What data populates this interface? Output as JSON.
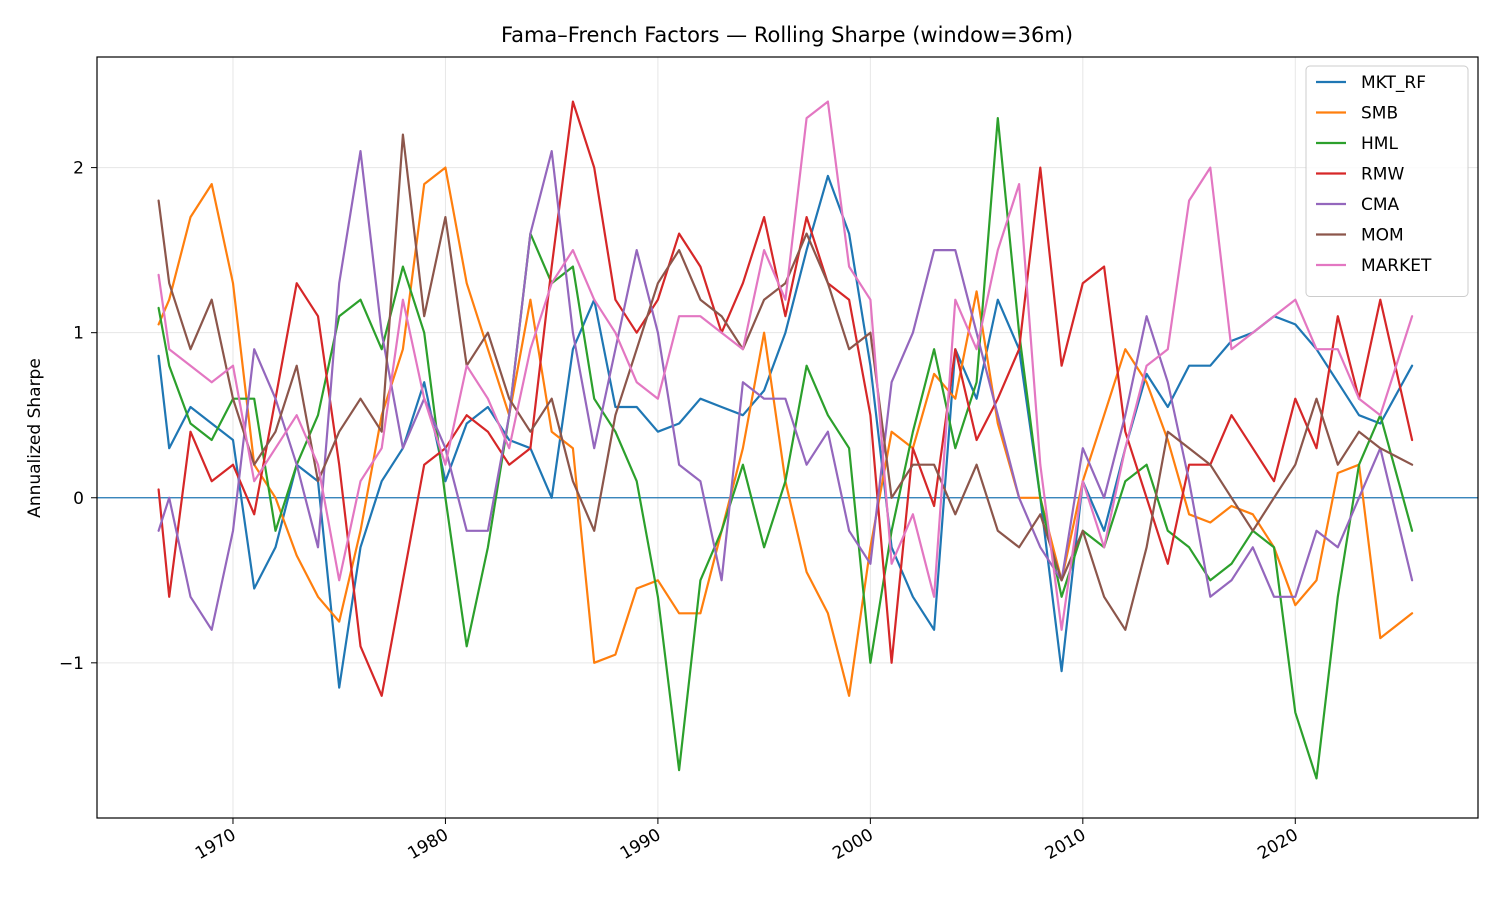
{
  "chart_data": {
    "type": "line",
    "title": "Fama–French Factors — Rolling Sharpe (window=36m)",
    "xlabel": "",
    "ylabel": "Annualized Sharpe",
    "xlim": [
      1963.6,
      2028.6
    ],
    "ylim": [
      -1.94,
      2.67
    ],
    "x_ticks": [
      1970,
      1980,
      1990,
      2000,
      2010,
      2020
    ],
    "x_tick_labels": [
      "1970",
      "1980",
      "1990",
      "2000",
      "2010",
      "2020"
    ],
    "y_ticks": [
      -1,
      0,
      1,
      2
    ],
    "y_tick_labels": [
      "−1",
      "0",
      "1",
      "2"
    ],
    "grid": true,
    "zero_line": true,
    "legend_position": "top-right",
    "x": [
      1966.5,
      1967,
      1968,
      1969,
      1970,
      1971,
      1972,
      1973,
      1974,
      1975,
      1976,
      1977,
      1978,
      1979,
      1980,
      1981,
      1982,
      1983,
      1984,
      1985,
      1986,
      1987,
      1988,
      1989,
      1990,
      1991,
      1992,
      1993,
      1994,
      1995,
      1996,
      1997,
      1998,
      1999,
      2000,
      2001,
      2002,
      2003,
      2004,
      2005,
      2006,
      2007,
      2008,
      2009,
      2010,
      2011,
      2012,
      2013,
      2014,
      2015,
      2016,
      2017,
      2018,
      2019,
      2020,
      2021,
      2022,
      2023,
      2024,
      2025.5
    ],
    "series": [
      {
        "name": "MKT_RF",
        "color": "#1f77b4",
        "values": [
          0.86,
          0.3,
          0.55,
          0.45,
          0.35,
          -0.55,
          -0.3,
          0.2,
          0.1,
          -1.15,
          -0.3,
          0.1,
          0.3,
          0.7,
          0.1,
          0.45,
          0.55,
          0.35,
          0.3,
          0.0,
          0.9,
          1.2,
          0.55,
          0.55,
          0.4,
          0.45,
          0.6,
          0.55,
          0.5,
          0.65,
          1.0,
          1.5,
          1.95,
          1.6,
          0.8,
          -0.3,
          -0.6,
          -0.8,
          0.9,
          0.6,
          1.2,
          0.9,
          0.0,
          -1.05,
          0.1,
          -0.2,
          0.3,
          0.75,
          0.55,
          0.8,
          0.8,
          0.95,
          1.0,
          1.1,
          1.05,
          0.9,
          0.7,
          0.5,
          0.45,
          0.8
        ]
      },
      {
        "name": "SMB",
        "color": "#ff7f0e",
        "values": [
          1.05,
          1.2,
          1.7,
          1.9,
          1.3,
          0.2,
          0.0,
          -0.35,
          -0.6,
          -0.75,
          -0.2,
          0.5,
          0.9,
          1.9,
          2.0,
          1.3,
          0.9,
          0.5,
          1.2,
          0.4,
          0.3,
          -1.0,
          -0.95,
          -0.55,
          -0.5,
          -0.7,
          -0.7,
          -0.2,
          0.3,
          1.0,
          0.1,
          -0.45,
          -0.7,
          -1.2,
          -0.3,
          0.4,
          0.3,
          0.75,
          0.6,
          1.25,
          0.45,
          0.0,
          0.0,
          -0.5,
          0.1,
          0.5,
          0.9,
          0.7,
          0.35,
          -0.1,
          -0.15,
          -0.05,
          -0.1,
          -0.3,
          -0.65,
          -0.5,
          0.15,
          0.2,
          -0.85,
          -0.7
        ]
      },
      {
        "name": "HML",
        "color": "#2ca02c",
        "values": [
          1.15,
          0.8,
          0.45,
          0.35,
          0.6,
          0.6,
          -0.2,
          0.2,
          0.5,
          1.1,
          1.2,
          0.9,
          1.4,
          1.0,
          0.0,
          -0.9,
          -0.3,
          0.5,
          1.6,
          1.3,
          1.4,
          0.6,
          0.4,
          0.1,
          -0.6,
          -1.65,
          -0.5,
          -0.2,
          0.2,
          -0.3,
          0.1,
          0.8,
          0.5,
          0.3,
          -1.0,
          -0.2,
          0.4,
          0.9,
          0.3,
          0.7,
          2.3,
          1.0,
          0.0,
          -0.6,
          -0.2,
          -0.3,
          0.1,
          0.2,
          -0.2,
          -0.3,
          -0.5,
          -0.4,
          -0.2,
          -0.3,
          -1.3,
          -1.7,
          -0.6,
          0.2,
          0.5,
          -0.2
        ]
      },
      {
        "name": "RMW",
        "color": "#d62728",
        "values": [
          0.05,
          -0.6,
          0.4,
          0.1,
          0.2,
          -0.1,
          0.6,
          1.3,
          1.1,
          0.2,
          -0.9,
          -1.2,
          -0.5,
          0.2,
          0.3,
          0.5,
          0.4,
          0.2,
          0.3,
          1.4,
          2.4,
          2.0,
          1.2,
          1.0,
          1.2,
          1.6,
          1.4,
          1.0,
          1.3,
          1.7,
          1.1,
          1.7,
          1.3,
          1.2,
          0.5,
          -1.0,
          0.3,
          -0.05,
          0.9,
          0.35,
          0.6,
          0.9,
          2.0,
          0.8,
          1.3,
          1.4,
          0.4,
          0.0,
          -0.4,
          0.2,
          0.2,
          0.5,
          0.3,
          0.1,
          0.6,
          0.3,
          1.1,
          0.6,
          1.2,
          0.35
        ]
      },
      {
        "name": "CMA",
        "color": "#9467bd",
        "values": [
          -0.2,
          0.0,
          -0.6,
          -0.8,
          -0.2,
          0.9,
          0.6,
          0.2,
          -0.3,
          1.3,
          2.1,
          1.0,
          0.3,
          0.6,
          0.3,
          -0.2,
          -0.2,
          0.5,
          1.6,
          2.1,
          1.0,
          0.3,
          0.9,
          1.5,
          1.0,
          0.2,
          0.1,
          -0.5,
          0.7,
          0.6,
          0.6,
          0.2,
          0.4,
          -0.2,
          -0.4,
          0.7,
          1.0,
          1.5,
          1.5,
          1.0,
          0.5,
          0.0,
          -0.3,
          -0.5,
          0.3,
          0.0,
          0.5,
          1.1,
          0.7,
          0.1,
          -0.6,
          -0.5,
          -0.3,
          -0.6,
          -0.6,
          -0.2,
          -0.3,
          0.0,
          0.3,
          -0.5
        ]
      },
      {
        "name": "MOM",
        "color": "#8c564b",
        "values": [
          1.8,
          1.3,
          0.9,
          1.2,
          0.6,
          0.2,
          0.4,
          0.8,
          0.1,
          0.4,
          0.6,
          0.4,
          2.2,
          1.1,
          1.7,
          0.8,
          1.0,
          0.6,
          0.4,
          0.6,
          0.1,
          -0.2,
          0.5,
          0.9,
          1.3,
          1.5,
          1.2,
          1.1,
          0.9,
          1.2,
          1.3,
          1.6,
          1.3,
          0.9,
          1.0,
          0.0,
          0.2,
          0.2,
          -0.1,
          0.2,
          -0.2,
          -0.3,
          -0.1,
          -0.5,
          -0.2,
          -0.6,
          -0.8,
          -0.3,
          0.4,
          0.3,
          0.2,
          0.0,
          -0.2,
          0.0,
          0.2,
          0.6,
          0.2,
          0.4,
          0.3,
          0.2
        ]
      },
      {
        "name": "MARKET",
        "color": "#e377c2",
        "values": [
          1.35,
          0.9,
          0.8,
          0.7,
          0.8,
          0.1,
          0.3,
          0.5,
          0.2,
          -0.5,
          0.1,
          0.3,
          1.2,
          0.6,
          0.2,
          0.8,
          0.6,
          0.3,
          0.9,
          1.3,
          1.5,
          1.2,
          1.0,
          0.7,
          0.6,
          1.1,
          1.1,
          1.0,
          0.9,
          1.5,
          1.2,
          2.3,
          2.4,
          1.4,
          1.2,
          -0.4,
          -0.1,
          -0.6,
          1.2,
          0.9,
          1.5,
          1.9,
          0.2,
          -0.8,
          0.1,
          -0.3,
          0.3,
          0.8,
          0.9,
          1.8,
          2.0,
          0.9,
          1.0,
          1.1,
          1.2,
          0.9,
          0.9,
          0.6,
          0.5,
          1.1
        ]
      }
    ]
  }
}
